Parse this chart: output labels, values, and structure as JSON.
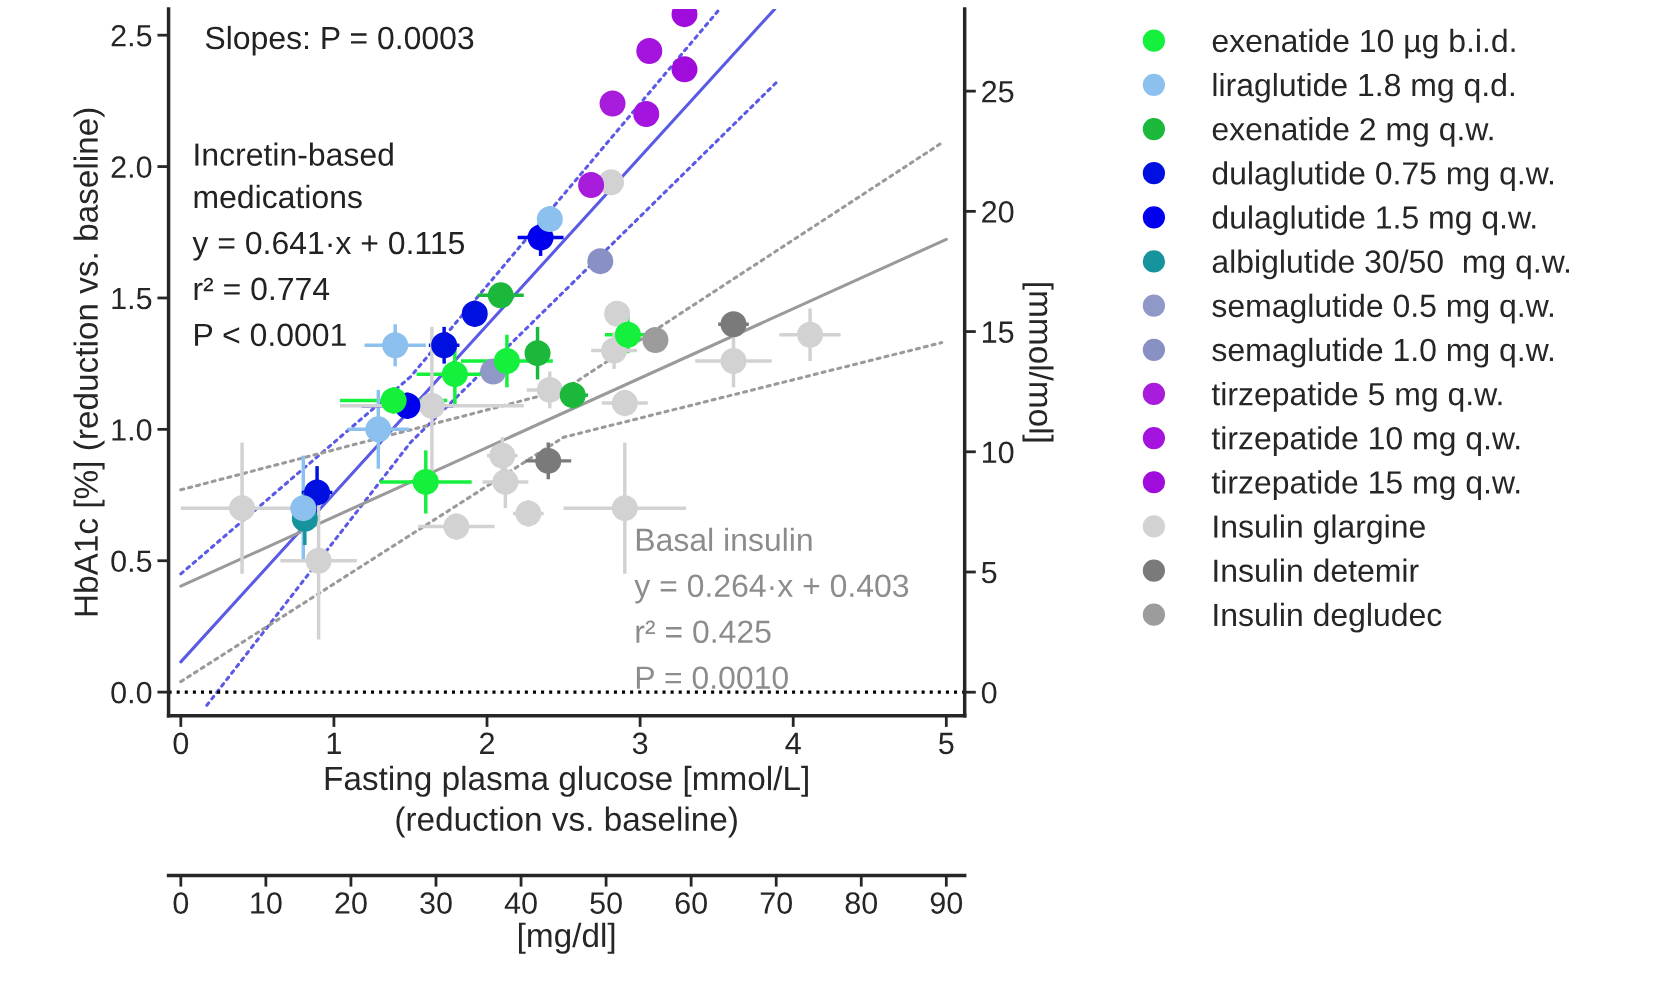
{
  "chart_data": {
    "type": "scatter",
    "xlabel": "Fasting plasma glucose [mmol/L]\n(reduction vs. baseline)",
    "ylabel": "HbA1c [%] (reduction vs. baseline)",
    "y2label": "[mmol/mol]",
    "x2label": "[mg/dl]",
    "xlim": [
      -0.08,
      5.12
    ],
    "xticks": [
      0,
      1,
      2,
      3,
      4,
      5
    ],
    "ylim": [
      -0.09,
      2.6
    ],
    "yticks": [
      {
        "value": 0,
        "label": "0.0"
      },
      {
        "value": 0.5,
        "label": "0.5"
      },
      {
        "value": 1,
        "label": "1.0"
      },
      {
        "value": 1.5,
        "label": "1.5"
      },
      {
        "value": 2,
        "label": "2.0"
      },
      {
        "value": 2.5,
        "label": "2.5"
      }
    ],
    "y2lim": [
      -0.98,
      28.42
    ],
    "y2ticks": [
      0,
      5,
      10,
      15,
      20,
      25
    ],
    "x2lim": [
      -1.44,
      92.16
    ],
    "x2ticks": [
      0,
      10,
      20,
      30,
      40,
      50,
      60,
      70,
      80,
      90
    ],
    "marker": "circle",
    "legend": "right",
    "grid": false,
    "ref_lines": [
      {
        "axis": "y",
        "value": 0,
        "color": "#000000",
        "line_style": "dotted"
      }
    ],
    "annotations": [
      "Slopes: P = 0.0003",
      "Incretin-based",
      "medications",
      "y = 0.641·x + 0.115",
      "r² = 0.774",
      "P < 0.0001",
      "Basal insulin",
      "y = 0.264·x + 0.403",
      "r² = 0.425",
      "P = 0.0010"
    ],
    "series": [
      {
        "name": "exenatide 10 µg b.i.d.",
        "color": "#14f03c",
        "x": [
          1.6,
          1.79,
          1.39,
          2.13,
          2.92
        ],
        "values": [
          0.8,
          1.21,
          1.11,
          1.26,
          1.36
        ],
        "xerrors": [
          0.3,
          0.25,
          0.35,
          0.3,
          0.15
        ],
        "errors": [
          0.12,
          0.12,
          0.05,
          0.1,
          0.07
        ]
      },
      {
        "name": "liraglutide 1.8 mg q.d.",
        "color": "#8cc0ee",
        "x": [
          1.4,
          1.29,
          2.41,
          0.8
        ],
        "values": [
          1.32,
          1.0,
          1.8,
          0.7
        ],
        "xerrors": [
          0.2,
          0.2,
          0.05,
          0.05
        ],
        "errors": [
          0.08,
          0.15,
          0.05,
          0.2
        ]
      },
      {
        "name": "exenatide 2 mg q.w.",
        "color": "#1cb83c",
        "x": [
          2.09,
          2.33,
          2.56
        ],
        "values": [
          1.51,
          1.29,
          1.13
        ],
        "xerrors": [
          0.15,
          0.05,
          0.1
        ],
        "errors": [
          0.03,
          0.1,
          0.05
        ]
      },
      {
        "name": "dulaglutide 0.75 mg q.w.",
        "color": "#0010e0",
        "x": [
          1.72,
          1.92,
          0.89
        ],
        "values": [
          1.32,
          1.44,
          0.76
        ],
        "xerrors": [
          0.1,
          0.07,
          0.1
        ],
        "errors": [
          0.07,
          0.05,
          0.1
        ]
      },
      {
        "name": "dulaglutide 1.5 mg q.w.",
        "color": "#0000ee",
        "x": [
          2.35,
          1.48
        ],
        "values": [
          1.73,
          1.09
        ],
        "xerrors": [
          0.15,
          0.3
        ],
        "errors": [
          0.07,
          0.05
        ]
      },
      {
        "name": "albiglutide 30/50  mg q.w.",
        "color": "#16949e",
        "x": [
          0.81
        ],
        "values": [
          0.66
        ],
        "xerrors": [
          0.05
        ],
        "errors": [
          0.1
        ]
      },
      {
        "name": "semaglutide 0.5 mg q.w.",
        "color": "#9098c8",
        "x": [
          2.04
        ],
        "values": [
          1.22
        ],
        "xerrors": [
          0.05
        ],
        "errors": [
          0.03
        ]
      },
      {
        "name": "semaglutide 1.0 mg q.w.",
        "color": "#8890c4",
        "x": [
          2.74
        ],
        "values": [
          1.64
        ],
        "xerrors": [
          0.08
        ],
        "errors": [
          0.03
        ]
      },
      {
        "name": "tirzepatide 5 mg q.w.",
        "color": "#a81cdc",
        "x": [
          2.82,
          2.68
        ],
        "values": [
          2.24,
          1.93
        ],
        "xerrors": [
          0.08,
          0.05
        ],
        "errors": [
          0.04,
          0.03
        ]
      },
      {
        "name": "tirzepatide 10 mg q.w.",
        "color": "#a414de",
        "x": [
          3.06,
          3.04
        ],
        "values": [
          2.44,
          2.2
        ],
        "xerrors": [
          0.08,
          0.05
        ],
        "errors": [
          0.03,
          0.04
        ]
      },
      {
        "name": "tirzepatide 15 mg q.w.",
        "color": "#a00cdc",
        "x": [
          3.29,
          3.29
        ],
        "values": [
          2.58,
          2.37
        ],
        "xerrors": [
          0.08,
          0.05
        ],
        "errors": [
          0.03,
          0.04
        ]
      },
      {
        "name": "Insulin glargine",
        "color": "#d2d2d2",
        "x": [
          0.4,
          0.9,
          1.64,
          1.8,
          2.1,
          2.12,
          2.27,
          2.41,
          2.9,
          2.83,
          2.85,
          2.9,
          2.81,
          3.61,
          4.11
        ],
        "values": [
          0.7,
          0.5,
          1.09,
          0.63,
          0.9,
          0.8,
          0.68,
          1.15,
          0.7,
          1.3,
          1.44,
          1.1,
          1.94,
          1.26,
          1.36
        ],
        "xerrors": [
          0.4,
          0.25,
          0.6,
          0.25,
          0.1,
          0.15,
          0.1,
          0.15,
          0.4,
          0.15,
          0.05,
          0.15,
          0.05,
          0.25,
          0.2
        ],
        "errors": [
          0.25,
          0.3,
          0.3,
          0.05,
          0.07,
          0.1,
          0.05,
          0.07,
          0.25,
          0.07,
          0.03,
          0.05,
          0.03,
          0.1,
          0.1
        ]
      },
      {
        "name": "Insulin detemir",
        "color": "#7a7a7a",
        "x": [
          2.4,
          3.61
        ],
        "values": [
          0.88,
          1.4
        ],
        "xerrors": [
          0.15,
          0.1
        ],
        "errors": [
          0.07,
          0.03
        ]
      },
      {
        "name": "Insulin degludec",
        "color": "#9c9c9c",
        "x": [
          3.1
        ],
        "values": [
          1.34
        ],
        "xerrors": [
          0.08
        ],
        "errors": [
          0.04
        ]
      },
      {
        "type": "line",
        "marker": "none",
        "color": "#5a5ae6",
        "line_style": "solid",
        "x": [
          0,
          3.88
        ],
        "values": [
          0.115,
          2.6
        ]
      },
      {
        "type": "line",
        "marker": "none",
        "color": "#5a5ae6",
        "line_style": "dotted",
        "x": [
          0,
          1.5,
          3.52
        ],
        "values": [
          0.45,
          1.2,
          2.6
        ]
      },
      {
        "type": "line",
        "marker": "none",
        "color": "#5a5ae6",
        "line_style": "dotted",
        "x": [
          0.17,
          1.5,
          3.89
        ],
        "values": [
          -0.05,
          0.95,
          2.32
        ]
      },
      {
        "type": "line",
        "marker": "none",
        "color": "#9a9a9a",
        "line_style": "solid",
        "x": [
          0,
          5
        ],
        "values": [
          0.403,
          1.723
        ]
      },
      {
        "type": "line",
        "marker": "none",
        "color": "#9a9a9a",
        "line_style": "dotted",
        "x": [
          0,
          2.5,
          4.97
        ],
        "values": [
          0.77,
          1.15,
          2.09
        ]
      },
      {
        "type": "line",
        "marker": "none",
        "color": "#9a9a9a",
        "line_style": "dotted",
        "x": [
          0,
          2.5,
          4.97
        ],
        "values": [
          0.04,
          0.97,
          1.33
        ]
      }
    ]
  }
}
